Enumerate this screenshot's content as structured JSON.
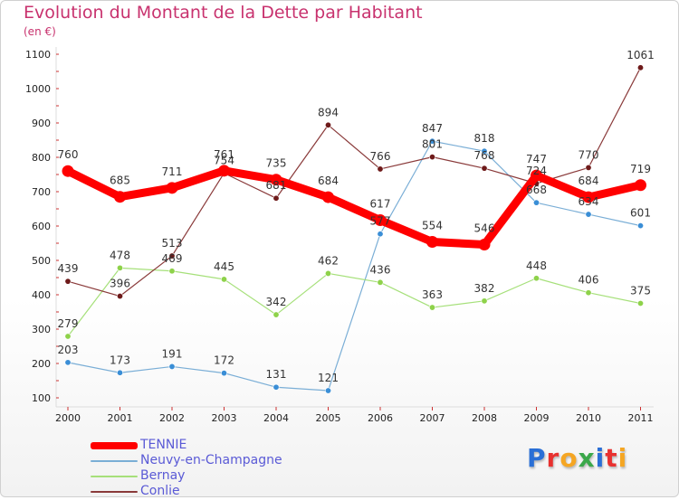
{
  "title": "Evolution du Montant de la Dette par Habitant",
  "subtitle": "(en €)",
  "logo": {
    "text": "Proxiti",
    "letters": [
      {
        "ch": "P",
        "color": "#2a6fd6"
      },
      {
        "ch": "r",
        "color": "#e8312f"
      },
      {
        "ch": "o",
        "color": "#f5a623"
      },
      {
        "ch": "x",
        "color": "#3aa84a"
      },
      {
        "ch": "i",
        "color": "#2a6fd6"
      },
      {
        "ch": "t",
        "color": "#e8312f"
      },
      {
        "ch": "i",
        "color": "#f5a623"
      }
    ]
  },
  "chart_data": {
    "type": "line",
    "title": "Evolution du Montant de la Dette par Habitant",
    "subtitle": "(en €)",
    "xlabel": "",
    "ylabel": "",
    "x": [
      "2000",
      "2001",
      "2002",
      "2003",
      "2004",
      "2005",
      "2006",
      "2007",
      "2008",
      "2009",
      "2010",
      "2011"
    ],
    "yticks": [
      100,
      200,
      300,
      400,
      500,
      600,
      700,
      800,
      900,
      1000,
      1100
    ],
    "ylim": [
      100,
      1100
    ],
    "grid": false,
    "legend_position": "bottom-left",
    "series": [
      {
        "name": "TENNIE",
        "color": "#ff0000",
        "width": 9,
        "values": [
          760,
          685,
          711,
          761,
          735,
          684,
          617,
          554,
          546,
          747,
          684,
          719
        ]
      },
      {
        "name": "Neuvy-en-Champagne",
        "color": "#7aaed6",
        "point_color": "#3a8ed6",
        "width": 1.2,
        "values": [
          203,
          173,
          191,
          172,
          131,
          121,
          577,
          847,
          818,
          668,
          634,
          601
        ]
      },
      {
        "name": "Bernay",
        "color": "#a6e07a",
        "point_color": "#8ed24a",
        "width": 1.2,
        "values": [
          279,
          478,
          469,
          445,
          342,
          462,
          436,
          363,
          382,
          448,
          406,
          375
        ]
      },
      {
        "name": "Conlie",
        "color": "#8a3a3a",
        "point_color": "#6e1a1a",
        "width": 1.2,
        "values": [
          439,
          396,
          513,
          754,
          681,
          894,
          766,
          801,
          768,
          724,
          770,
          1061
        ]
      }
    ]
  }
}
